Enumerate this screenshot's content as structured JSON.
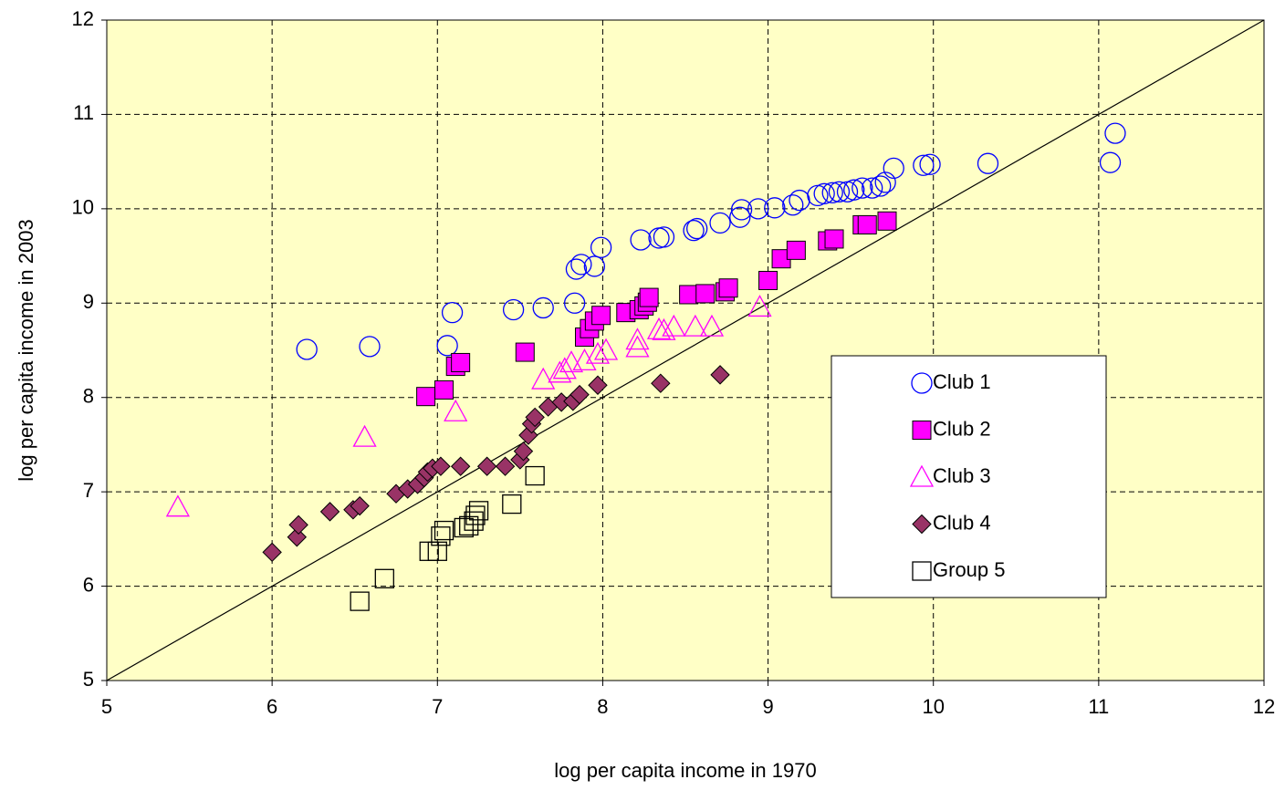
{
  "chart_data": {
    "type": "scatter",
    "xlabel": "log per capita income in 1970",
    "ylabel": "log per capita income in 2003",
    "xlim": [
      5,
      12
    ],
    "ylim": [
      5,
      12
    ],
    "xticks": [
      5,
      6,
      7,
      8,
      9,
      10,
      11,
      12
    ],
    "yticks": [
      5,
      6,
      7,
      8,
      9,
      10,
      11,
      12
    ],
    "grid": true,
    "legend": "right",
    "series": [
      {
        "name": "Club 1",
        "color": "#0000ff",
        "marker": "circle",
        "filled": false,
        "x": [
          6.21,
          6.59,
          7.06,
          7.09,
          7.46,
          7.64,
          7.83,
          7.84,
          7.87,
          7.95,
          7.99,
          8.23,
          8.34,
          8.37,
          8.55,
          8.57,
          8.71,
          8.83,
          8.84,
          8.94,
          9.04,
          9.15,
          9.19,
          9.3,
          9.34,
          9.39,
          9.43,
          9.48,
          9.52,
          9.57,
          9.63,
          9.68,
          9.71,
          9.76,
          9.94,
          9.98,
          10.33,
          11.07,
          11.1
        ],
        "values": [
          8.51,
          8.54,
          8.55,
          8.9,
          8.93,
          8.95,
          9.0,
          9.36,
          9.41,
          9.39,
          9.59,
          9.67,
          9.69,
          9.7,
          9.77,
          9.79,
          9.85,
          9.91,
          9.99,
          10.0,
          10.01,
          10.04,
          10.09,
          10.14,
          10.16,
          10.17,
          10.18,
          10.18,
          10.2,
          10.22,
          10.22,
          10.24,
          10.28,
          10.43,
          10.46,
          10.47,
          10.48,
          10.49,
          10.8
        ]
      },
      {
        "name": "Club 2",
        "color": "#ff00ff",
        "marker": "square",
        "filled": true,
        "x": [
          6.93,
          7.04,
          7.11,
          7.14,
          7.53,
          7.89,
          7.92,
          7.95,
          7.99,
          8.14,
          8.22,
          8.25,
          8.27,
          8.28,
          8.52,
          8.62,
          8.74,
          8.76,
          9.0,
          9.08,
          9.17,
          9.36,
          9.4,
          9.57,
          9.6,
          9.72
        ],
        "values": [
          8.01,
          8.08,
          8.33,
          8.37,
          8.48,
          8.64,
          8.73,
          8.81,
          8.87,
          8.9,
          8.93,
          8.97,
          9.01,
          9.06,
          9.09,
          9.1,
          9.12,
          9.16,
          9.24,
          9.47,
          9.56,
          9.66,
          9.68,
          9.83,
          9.83,
          9.87
        ]
      },
      {
        "name": "Club 3",
        "color": "#ff00ff",
        "marker": "triangle",
        "filled": false,
        "x": [
          5.43,
          6.56,
          7.11,
          7.64,
          7.74,
          7.77,
          7.81,
          7.89,
          7.97,
          8.02,
          8.21,
          8.21,
          8.34,
          8.37,
          8.43,
          8.56,
          8.66,
          8.95
        ],
        "values": [
          6.84,
          7.58,
          7.85,
          8.19,
          8.26,
          8.3,
          8.37,
          8.39,
          8.46,
          8.5,
          8.61,
          8.53,
          8.72,
          8.71,
          8.75,
          8.75,
          8.75,
          8.96
        ]
      },
      {
        "name": "Club 4",
        "color": "#993366",
        "marker": "diamond",
        "filled": true,
        "x": [
          6.0,
          6.15,
          6.16,
          6.35,
          6.49,
          6.53,
          6.75,
          6.82,
          6.88,
          6.92,
          6.94,
          6.97,
          7.02,
          7.14,
          7.3,
          7.41,
          7.5,
          7.52,
          7.55,
          7.57,
          7.59,
          7.67,
          7.75,
          7.82,
          7.86,
          7.97,
          8.35,
          8.71
        ],
        "values": [
          6.36,
          6.52,
          6.65,
          6.79,
          6.81,
          6.85,
          6.98,
          7.03,
          7.08,
          7.15,
          7.21,
          7.25,
          7.27,
          7.27,
          7.27,
          7.27,
          7.34,
          7.43,
          7.6,
          7.72,
          7.79,
          7.9,
          7.95,
          7.96,
          8.03,
          8.13,
          8.15,
          8.24
        ]
      },
      {
        "name": "Group 5",
        "color": "#000000",
        "marker": "square",
        "filled": false,
        "x": [
          6.53,
          6.68,
          6.95,
          7.0,
          7.02,
          7.04,
          7.16,
          7.19,
          7.22,
          7.23,
          7.25,
          7.45,
          7.59
        ],
        "values": [
          5.84,
          6.08,
          6.37,
          6.37,
          6.53,
          6.59,
          6.62,
          6.64,
          6.69,
          6.75,
          6.8,
          6.87,
          7.17
        ]
      }
    ]
  }
}
